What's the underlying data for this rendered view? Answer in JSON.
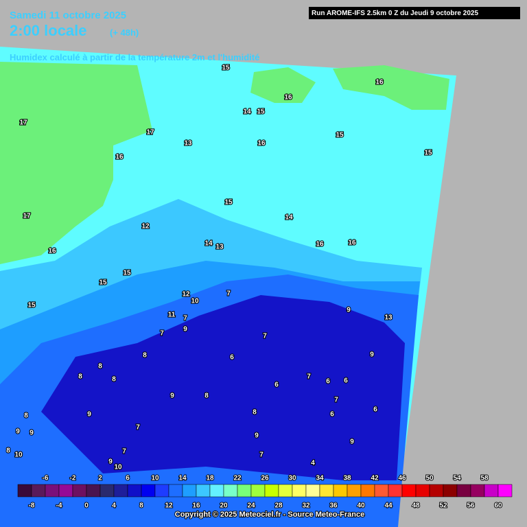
{
  "header": {
    "date": "Samedi 11 octobre 2025",
    "time": "2:00 locale",
    "lead": "(+ 48h)",
    "parameter": "Humidex calculé à partir de la température 2m et l'humidité",
    "run": "Run AROME-IFS 2.5km 0 Z du Jeudi 9 octobre 2025"
  },
  "map": {
    "labels": [
      "15",
      "16",
      "16",
      "14",
      "15",
      "17",
      "17",
      "13",
      "16",
      "15",
      "16",
      "15",
      "15",
      "17",
      "14",
      "12",
      "16",
      "16",
      "14",
      "13",
      "16",
      "15",
      "15",
      "15",
      "12",
      "10",
      "7",
      "9",
      "13",
      "11",
      "7",
      "9",
      "7",
      "7",
      "8",
      "6",
      "9",
      "8",
      "8",
      "8",
      "7",
      "6",
      "6",
      "6",
      "9",
      "8",
      "7",
      "8",
      "9",
      "8",
      "6",
      "6",
      "9",
      "9",
      "7",
      "9",
      "8",
      "10",
      "7",
      "7",
      "9",
      "10",
      "4",
      "9"
    ]
  },
  "colorbar": {
    "ticks": [
      -8,
      -6,
      -4,
      -2,
      0,
      2,
      4,
      6,
      8,
      10,
      12,
      14,
      16,
      18,
      20,
      22,
      24,
      26,
      28,
      30,
      32,
      34,
      36,
      38,
      40,
      42,
      44,
      46,
      48,
      50,
      52,
      54,
      56,
      58,
      60
    ],
    "range": [
      -10,
      62
    ],
    "colors": [
      "#3a0a3a",
      "#5a1a5a",
      "#7a107a",
      "#960a96",
      "#6e1060",
      "#4a1450",
      "#2a2a6e",
      "#1e1e9a",
      "#1010c8",
      "#0000f0",
      "#1e3cff",
      "#1e6eff",
      "#1e9eff",
      "#3cc8ff",
      "#64f0ff",
      "#78ffc8",
      "#78ff78",
      "#a0ff3c",
      "#c8ff00",
      "#e6ff3c",
      "#ffff64",
      "#ffff96",
      "#ffe632",
      "#ffc800",
      "#ffa000",
      "#ff7800",
      "#ff5a32",
      "#ff3232",
      "#ff0000",
      "#e60000",
      "#b40000",
      "#8c0000",
      "#780040",
      "#960060",
      "#c800c8",
      "#ff00ff"
    ]
  },
  "footer": {
    "copyright": "Copyright © 2025 Meteociel.fr - Source Meteo-France"
  }
}
